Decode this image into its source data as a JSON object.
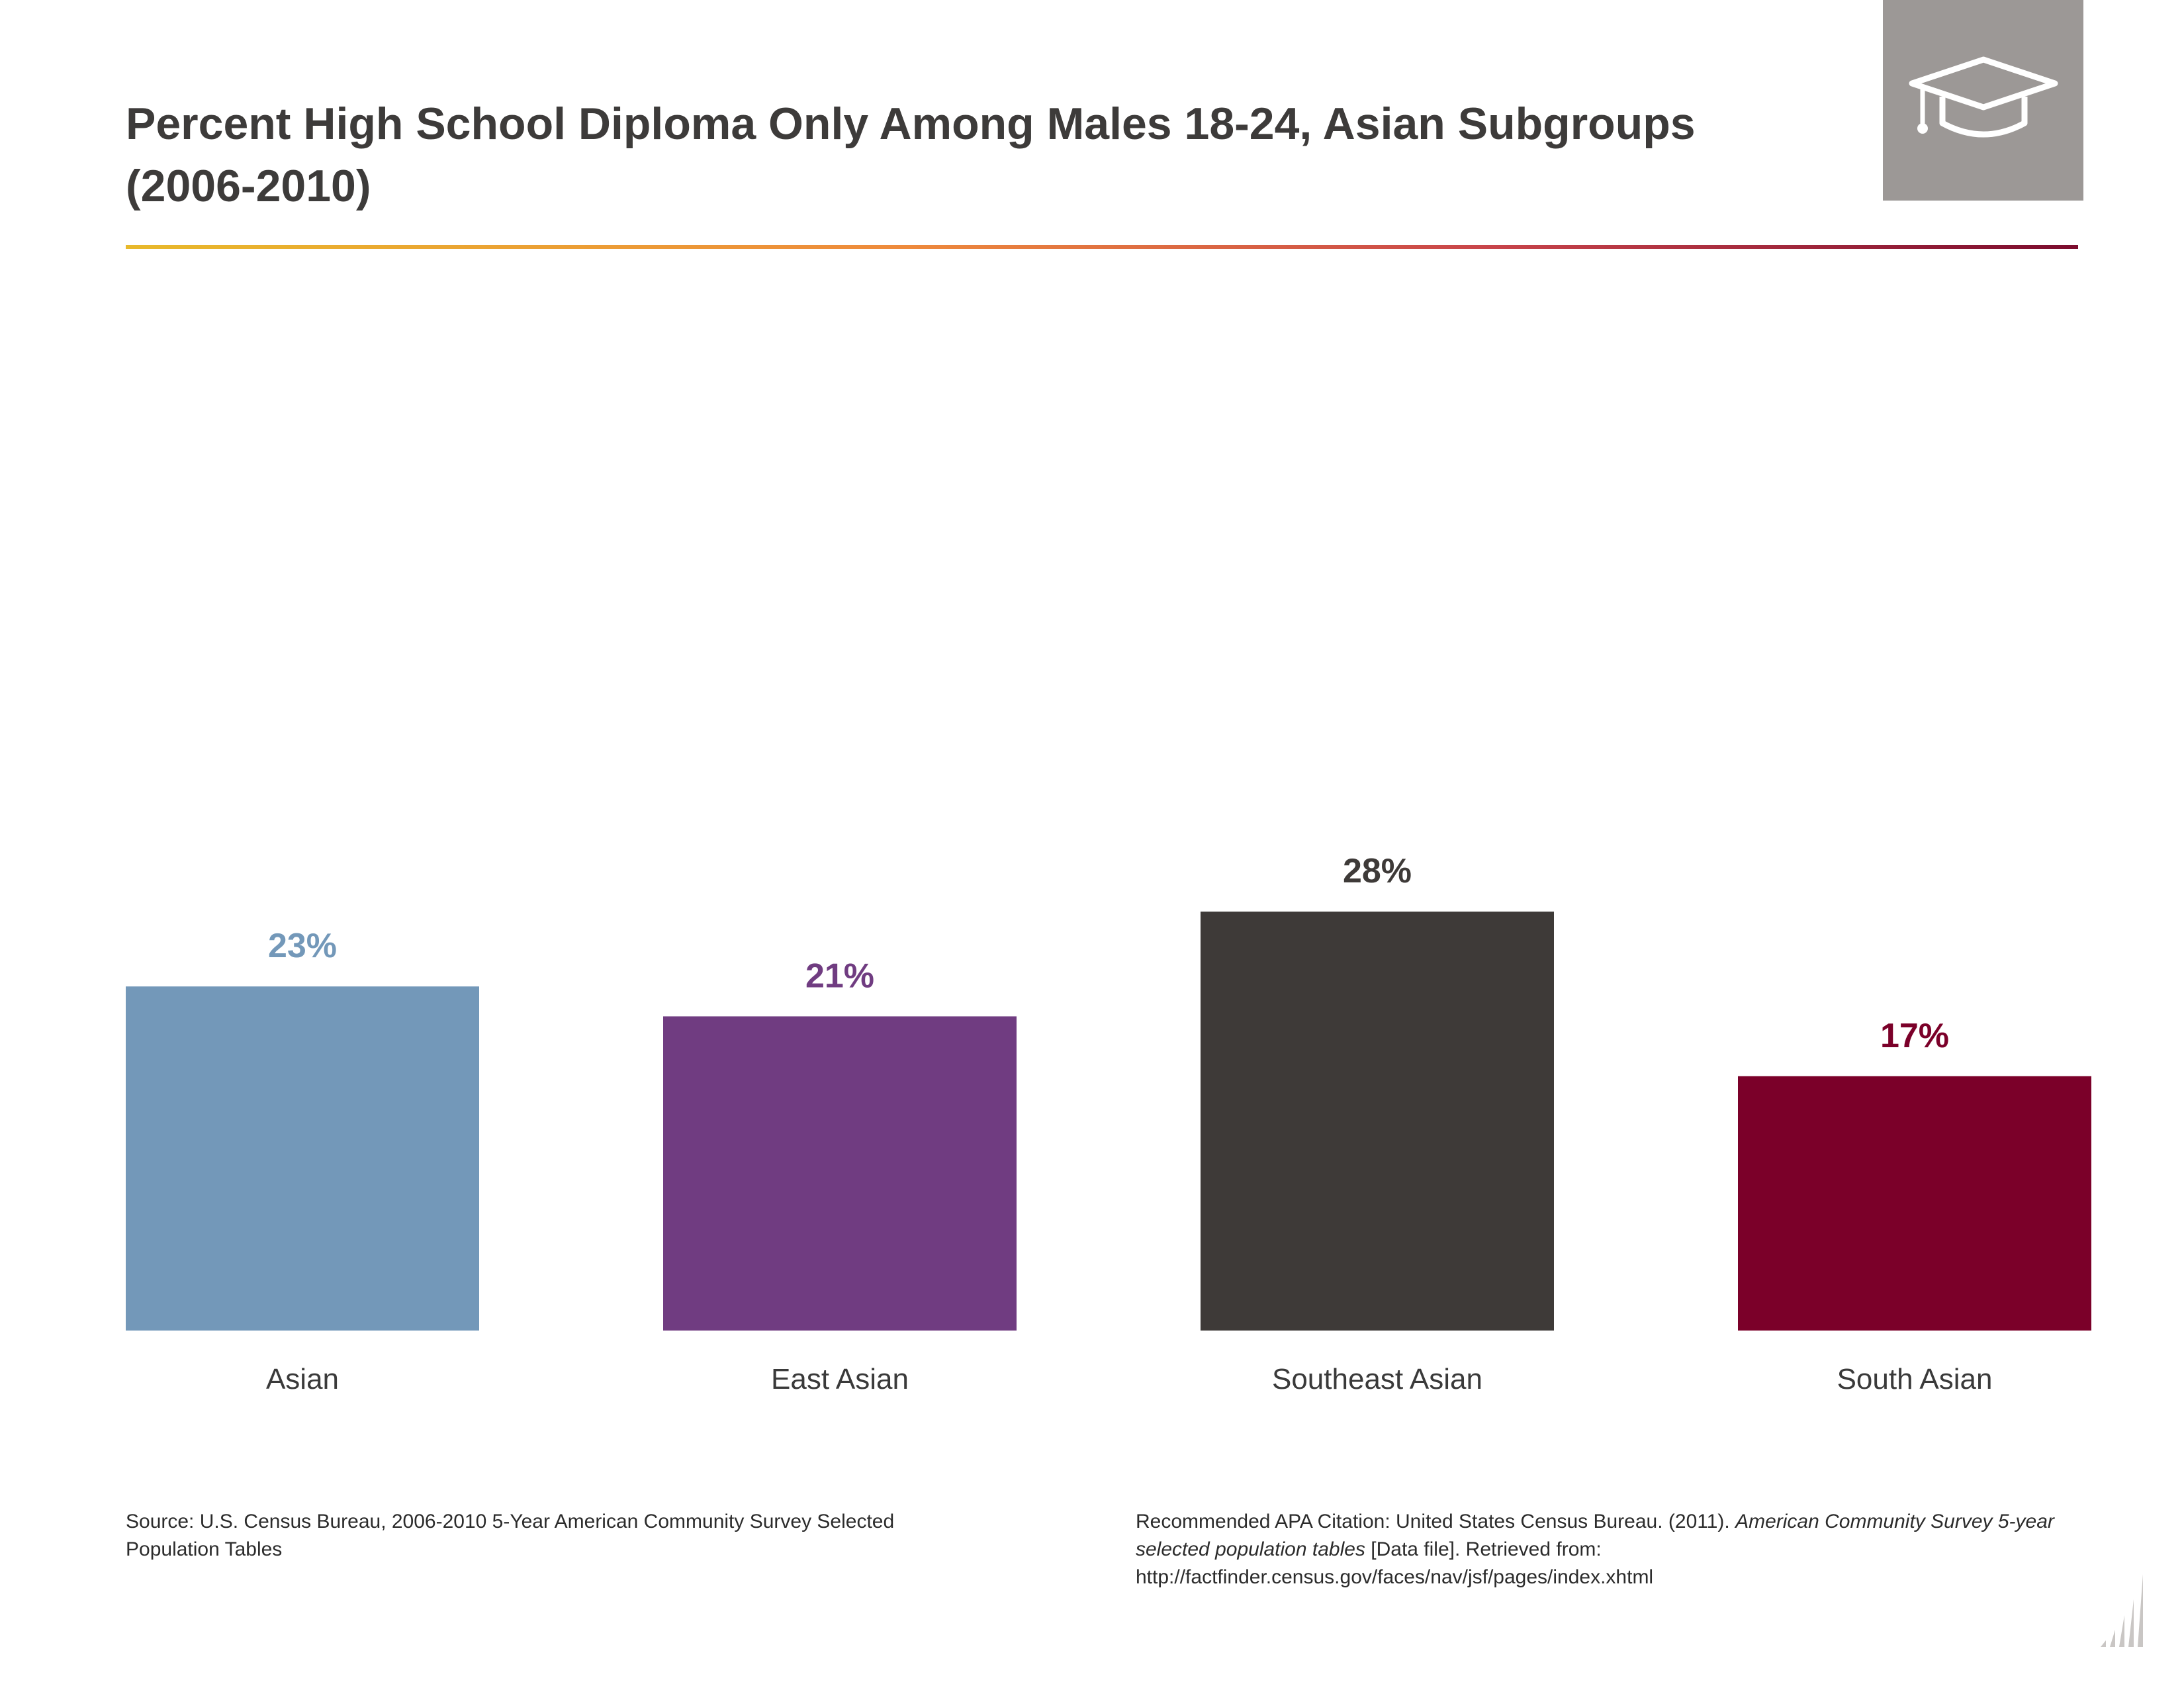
{
  "title_lines": [
    "Percent High School Diploma Only Among Males 18-24, Asian Subgroups",
    "(2006-2010)"
  ],
  "header_icon": "graduation-cap-icon",
  "corner_icon": "bar-growth-icon",
  "chart_data": {
    "type": "bar",
    "title": "Percent High School Diploma Only Among Males 18-24, Asian Subgroups (2006-2010)",
    "categories": [
      "Asian",
      "East Asian",
      "Southeast Asian",
      "South Asian"
    ],
    "values": [
      23,
      21,
      28,
      17
    ],
    "value_labels": [
      "23%",
      "21%",
      "28%",
      "17%"
    ],
    "unit": "%",
    "colors": [
      "#7398b9",
      "#703c81",
      "#3e3a38",
      "#7b0029"
    ],
    "label_colors": [
      "#7398b9",
      "#703c81",
      "#3e3a38",
      "#7b0029"
    ],
    "ylim": [
      0,
      28
    ],
    "grid": false,
    "legend": "none"
  },
  "source_text": "Source: U.S. Census Bureau, 2006-2010 5-Year American Community Survey Selected Population Tables",
  "citation": {
    "prefix": "Recommended APA Citation: United States Census Bureau. (2011). ",
    "italic": "American Community Survey 5-year selected population tables",
    "suffix": " [Data file]. Retrieved from: http://factfinder.census.gov/faces/nav/jsf/pages/index.xhtml"
  }
}
